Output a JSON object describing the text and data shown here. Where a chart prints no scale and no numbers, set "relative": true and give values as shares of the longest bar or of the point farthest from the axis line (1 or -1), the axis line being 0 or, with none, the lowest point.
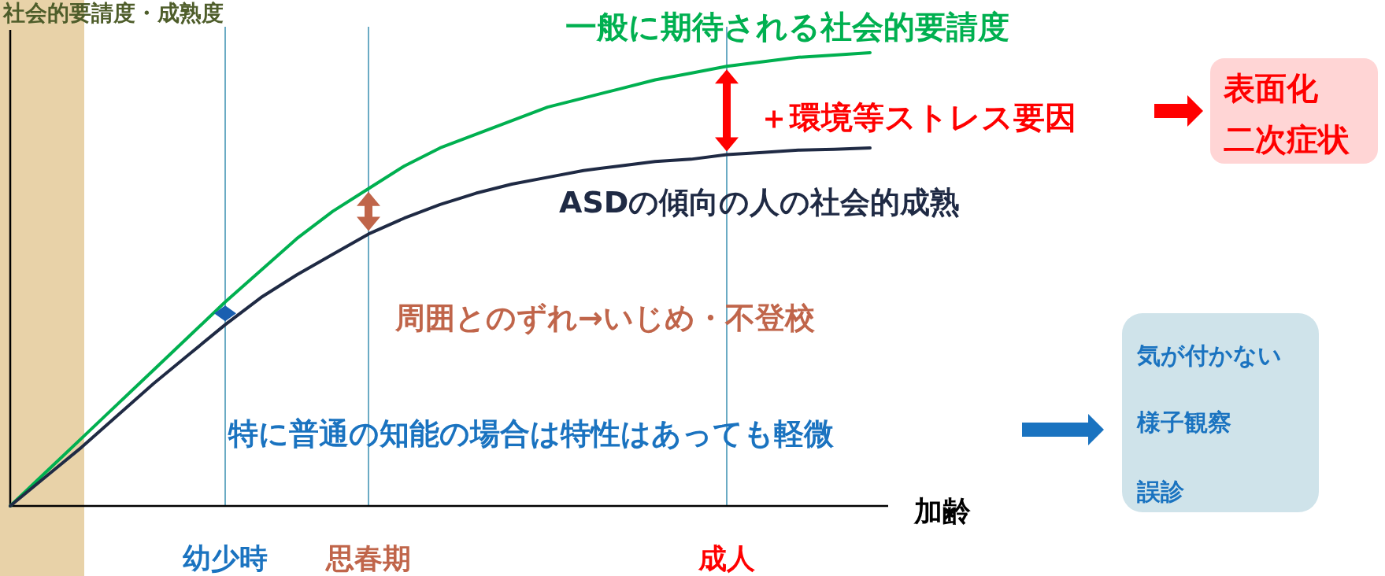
{
  "chart_data": {
    "type": "line",
    "relative": true,
    "ylabel": "社会的要請度・成熟度",
    "xlabel": "加齢",
    "categories": [
      null,
      null,
      null,
      null,
      null,
      null,
      "幼少時",
      null,
      null,
      null,
      "思春期",
      null,
      null,
      null,
      null,
      null,
      null,
      null,
      null,
      null,
      "成人",
      null,
      null,
      null,
      null
    ],
    "series": [
      {
        "name": "一般に期待される社会的要請度",
        "color": "#00b050",
        "values": [
          0,
          0.075,
          0.15,
          0.225,
          0.3,
          0.375,
          0.45,
          0.52,
          0.59,
          0.65,
          0.7,
          0.75,
          0.79,
          0.82,
          0.85,
          0.88,
          0.9,
          0.92,
          0.94,
          0.955,
          0.97,
          0.98,
          0.99,
          0.995,
          1
        ]
      },
      {
        "name": "ASDの傾向の人の社会的成熟",
        "color": "#1f2a44",
        "values": [
          0,
          0.065,
          0.13,
          0.2,
          0.27,
          0.335,
          0.4,
          0.46,
          0.51,
          0.555,
          0.6,
          0.635,
          0.665,
          0.69,
          0.71,
          0.725,
          0.74,
          0.75,
          0.76,
          0.765,
          0.775,
          0.78,
          0.785,
          0.787,
          0.79
        ]
      }
    ],
    "annotations": [
      "＋環境等ストレス要因",
      "表面化",
      "二次症状",
      "周囲とのずれ→いじめ・不登校",
      "特に普通の知能の場合は特性はあっても軽微",
      "気が付かない",
      "様子観察",
      "誤診"
    ],
    "grid": "x",
    "marker": "none",
    "line_style": "solid"
  }
}
